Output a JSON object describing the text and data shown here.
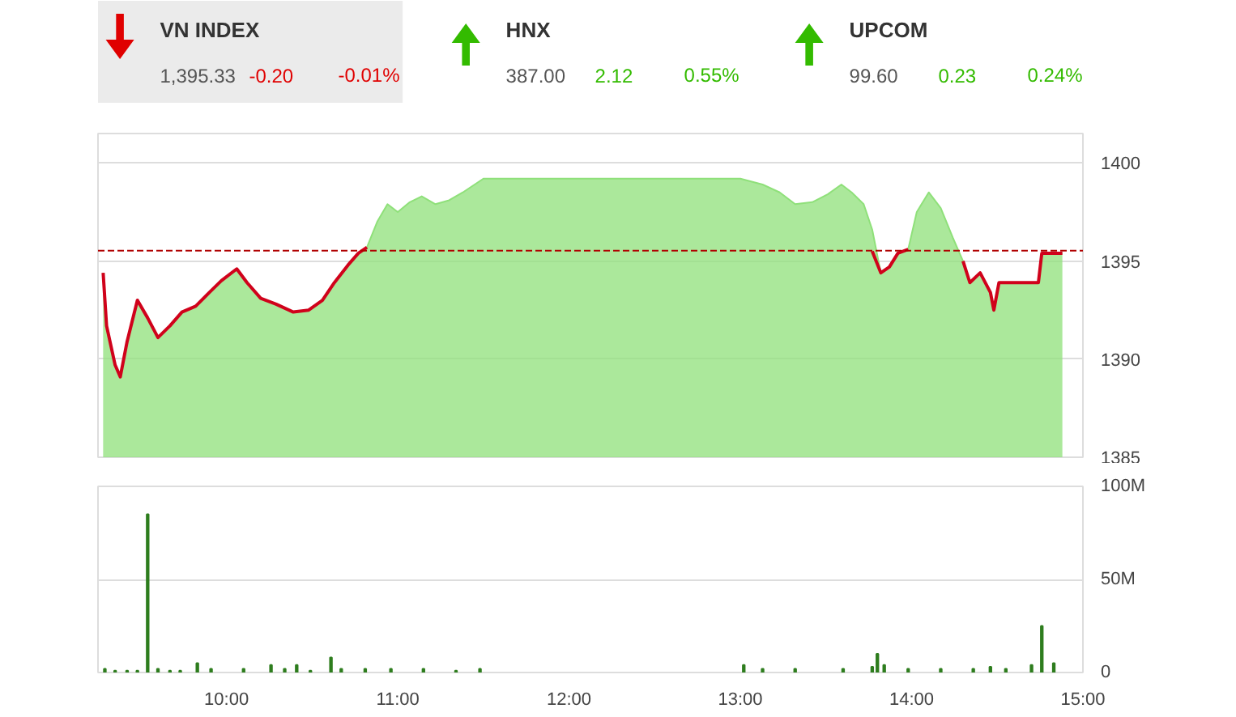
{
  "chart_data": [
    {
      "type": "other",
      "categories": [
        "VN INDEX",
        "HNX",
        "UPCOM"
      ],
      "annotations": [
        "1,395.33",
        "-0.20",
        "-0.01%",
        "387.00",
        "2.12",
        "0.55%",
        "99.60",
        "0.23",
        "0.24%"
      ],
      "colors": [
        "#e00000",
        "#33bb00",
        "#33bb00"
      ]
    },
    {
      "type": "area",
      "xlim": [
        9.25,
        15
      ],
      "ylim": [
        1385,
        1401.5
      ],
      "yticks": [
        1385,
        1390,
        1395,
        1400
      ],
      "grid": "y",
      "tick_labels": "y",
      "ref_lines": [
        {
          "axis": "y",
          "value": 1395.53,
          "color": "#b00000",
          "line_style": "dashed"
        }
      ],
      "series": [
        {
          "type": "area",
          "color": "#8fe07a",
          "x": [
            9.28,
            9.3,
            9.35,
            9.38,
            9.42,
            9.48,
            9.54,
            9.6,
            9.67,
            9.74,
            9.82,
            9.9,
            9.97,
            10.06,
            10.12,
            10.2,
            10.29,
            10.39,
            10.48,
            10.56,
            10.63,
            10.71,
            10.77,
            10.82,
            10.88,
            10.94,
            11.0,
            11.07,
            11.14,
            11.22,
            11.3,
            11.38,
            11.5,
            13.0,
            13.13,
            13.23,
            13.32,
            13.42,
            13.51,
            13.59,
            13.65,
            13.72,
            13.77,
            13.82,
            13.87,
            13.92,
            13.98,
            14.03,
            14.1,
            14.17,
            14.24,
            14.3,
            14.34,
            14.4,
            14.46,
            14.48,
            14.51,
            14.6,
            14.74,
            14.76,
            14.88
          ],
          "values": [
            1394.4,
            1391.7,
            1389.7,
            1389.1,
            1390.9,
            1393.0,
            1392.1,
            1391.1,
            1391.7,
            1392.4,
            1392.7,
            1393.4,
            1394.0,
            1394.6,
            1393.9,
            1393.1,
            1392.8,
            1392.4,
            1392.5,
            1393.0,
            1393.9,
            1394.8,
            1395.4,
            1395.7,
            1397.0,
            1397.9,
            1397.5,
            1398.0,
            1398.3,
            1397.9,
            1398.1,
            1398.5,
            1399.2,
            1399.2,
            1398.9,
            1398.5,
            1397.9,
            1398.0,
            1398.4,
            1398.9,
            1398.5,
            1397.9,
            1396.6,
            1394.4,
            1394.7,
            1395.4,
            1395.6,
            1397.5,
            1398.5,
            1397.7,
            1396.2,
            1395.0,
            1393.9,
            1394.4,
            1393.4,
            1392.5,
            1393.9,
            1393.9,
            1393.9,
            1395.4,
            1395.4
          ]
        },
        {
          "type": "line",
          "color": "#d0021b",
          "x": [
            9.28,
            9.3,
            9.35,
            9.38,
            9.42,
            9.48,
            9.54,
            9.6,
            9.67,
            9.74,
            9.82,
            9.9,
            9.97,
            10.06,
            10.12,
            10.2,
            10.29,
            10.39,
            10.48,
            10.56,
            10.63,
            10.71,
            10.77,
            10.82,
            10.88,
            13.72,
            13.77,
            13.82,
            13.87,
            13.92,
            13.98,
            14.03,
            14.24,
            14.3,
            14.34,
            14.4,
            14.46,
            14.48,
            14.51,
            14.6,
            14.74,
            14.76,
            14.88
          ],
          "values": [
            1394.4,
            1391.7,
            1389.7,
            1389.1,
            1390.9,
            1393.0,
            1392.1,
            1391.1,
            1391.7,
            1392.4,
            1392.7,
            1393.4,
            1394.0,
            1394.6,
            1393.9,
            1393.1,
            1392.8,
            1392.4,
            1392.5,
            1393.0,
            1393.9,
            1394.8,
            1395.4,
            1395.7,
            null,
            null,
            1395.5,
            1394.4,
            1394.7,
            1395.4,
            1395.6,
            null,
            null,
            1395.0,
            1393.9,
            1394.4,
            1393.4,
            1392.5,
            1393.9,
            1393.9,
            1393.9,
            1395.4,
            1395.4
          ]
        }
      ]
    },
    {
      "type": "bar",
      "xlim": [
        9.25,
        15
      ],
      "ylim": [
        0,
        100
      ],
      "grid": "y",
      "xticks": [
        {
          "value": 10,
          "label": "10:00"
        },
        {
          "value": 11,
          "label": "11:00"
        },
        {
          "value": 12,
          "label": "12:00"
        },
        {
          "value": 13,
          "label": "13:00"
        },
        {
          "value": 14,
          "label": "14:00"
        },
        {
          "value": 15,
          "label": "15:00"
        }
      ],
      "yticks": [
        0,
        {
          "value": 50,
          "label": "50M"
        },
        {
          "value": 100,
          "label": "100M"
        }
      ],
      "color": "#2e7d1e",
      "x": [
        9.29,
        9.35,
        9.42,
        9.48,
        9.54,
        9.6,
        9.67,
        9.73,
        9.83,
        9.91,
        10.1,
        10.26,
        10.34,
        10.41,
        10.49,
        10.61,
        10.67,
        10.81,
        10.96,
        11.15,
        11.34,
        11.48,
        13.02,
        13.13,
        13.32,
        13.6,
        13.77,
        13.8,
        13.84,
        13.98,
        14.17,
        14.36,
        14.46,
        14.55,
        14.7,
        14.76,
        14.83
      ],
      "values": [
        2,
        1,
        1,
        1,
        85,
        2,
        1,
        1,
        5,
        2,
        2,
        4,
        2,
        4,
        1,
        8,
        2,
        2,
        2,
        2,
        1,
        2,
        4,
        2,
        2,
        2,
        3,
        10,
        4,
        2,
        2,
        2,
        3,
        2,
        4,
        25,
        5
      ]
    }
  ]
}
